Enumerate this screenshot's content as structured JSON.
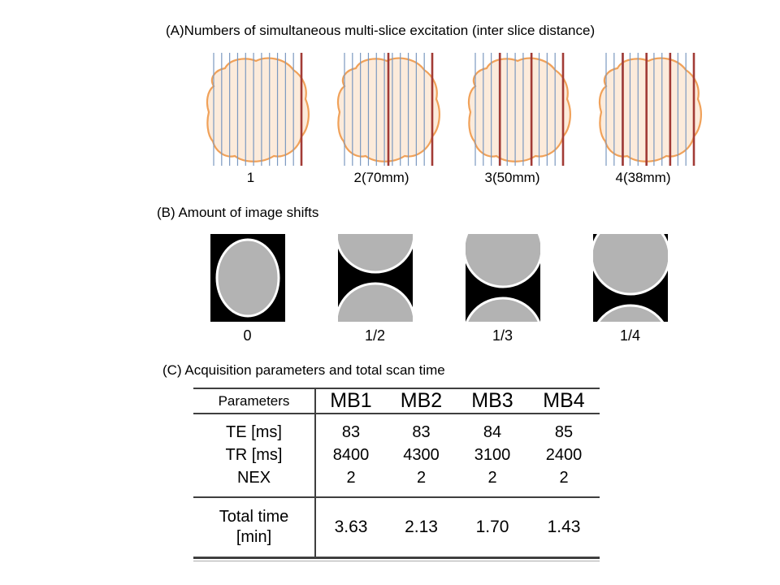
{
  "panelA": {
    "title": "(A)Numbers of simultaneous multi-slice excitation (inter slice distance)",
    "blue_line_count": 12,
    "colors": {
      "blob_fill": "#fcebdb",
      "blob_stroke": "#f0a159",
      "blue_line": "#7b99c0",
      "red_line": "#a23b36"
    },
    "items": [
      {
        "label": "1",
        "red_fractions": [
          1.0
        ]
      },
      {
        "label": "2(70mm)",
        "red_fractions": [
          0.5,
          1.0
        ]
      },
      {
        "label": "3(50mm)",
        "red_fractions": [
          0.28,
          0.64,
          1.0
        ]
      },
      {
        "label": "4(38mm)",
        "red_fractions": [
          0.19,
          0.46,
          0.73,
          1.0
        ]
      }
    ]
  },
  "panelB": {
    "title": "(B) Amount of image shifts",
    "colors": {
      "bg": "#000000",
      "ellipse_fill": "#b3b3b3",
      "ellipse_stroke": "#ffffff"
    },
    "items": [
      {
        "label": "0",
        "shift": 0
      },
      {
        "label": "1/2",
        "shift": 0.5
      },
      {
        "label": "1/3",
        "shift": 0.3333
      },
      {
        "label": "1/4",
        "shift": 0.25
      }
    ]
  },
  "panelC": {
    "title": "(C) Acquisition parameters and total scan time",
    "table": {
      "header": [
        "Parameters",
        "MB1",
        "MB2",
        "MB3",
        "MB4"
      ],
      "rows": [
        {
          "label": "TE [ms]",
          "values": [
            "83",
            "83",
            "84",
            "85"
          ]
        },
        {
          "label": "TR [ms]",
          "values": [
            "8400",
            "4300",
            "3100",
            "2400"
          ]
        },
        {
          "label": "NEX",
          "values": [
            "2",
            "2",
            "2",
            "2"
          ]
        }
      ],
      "total_row": {
        "label_line1": "Total time",
        "label_line2": "[min]",
        "values": [
          "3.63",
          "2.13",
          "1.70",
          "1.43"
        ]
      }
    }
  }
}
